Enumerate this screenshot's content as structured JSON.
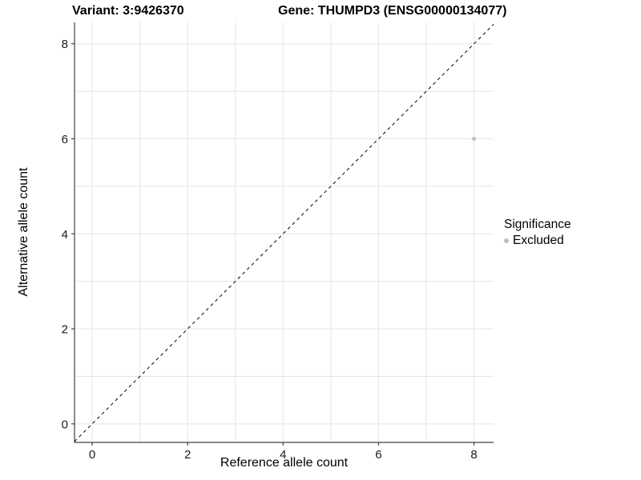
{
  "header": {
    "variant_title": "Variant: 3:9426370",
    "gene_title": "Gene: THUMPD3 (ENSG00000134077)"
  },
  "chart_data": {
    "type": "scatter",
    "title_left": "Variant: 3:9426370",
    "title_right": "Gene: THUMPD3 (ENSG00000134077)",
    "xlabel": "Reference allele count",
    "ylabel": "Alternative allele count",
    "xlim": [
      -0.37,
      8.41
    ],
    "ylim": [
      -0.39,
      8.45
    ],
    "x_ticks": [
      0,
      2,
      4,
      6,
      8
    ],
    "y_ticks": [
      0,
      2,
      4,
      6,
      8
    ],
    "x_gridlines": [
      0,
      1,
      2,
      3,
      4,
      5,
      6,
      7,
      8
    ],
    "y_gridlines": [
      0,
      1,
      2,
      3,
      4,
      5,
      6,
      7,
      8
    ],
    "grid": true,
    "points": [
      {
        "x": 8,
        "y": 6,
        "series": "Excluded"
      }
    ],
    "reference_line": {
      "description": "identity line y = x",
      "style": "dashed",
      "from": [
        -0.37,
        -0.37
      ],
      "to": [
        8.41,
        8.41
      ],
      "color": "#000000"
    },
    "legend": {
      "title": "Significance",
      "position": "right",
      "items": [
        {
          "label": "Excluded",
          "color": "#bebebe"
        }
      ]
    },
    "colors": {
      "point": "#bebebe",
      "grid": "#e5e5e5",
      "axis_line": "#404040",
      "tick": "#404040",
      "tick_label": "#1a1a1a",
      "background": "#ffffff"
    },
    "point_radius_px": 2.5
  }
}
